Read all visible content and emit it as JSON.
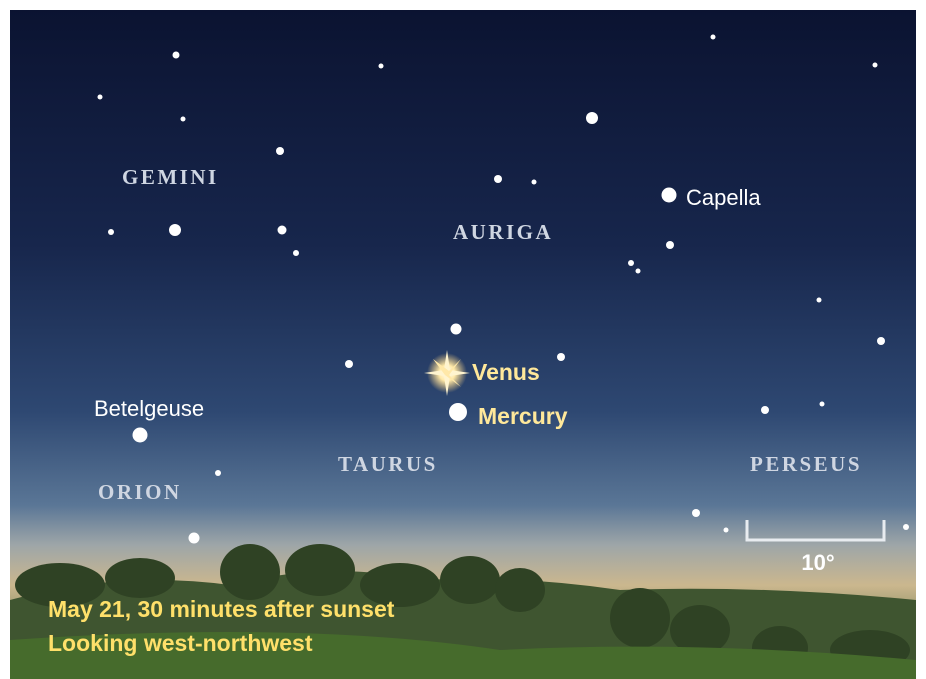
{
  "constellations": [
    "GEMINI",
    "AURIGA",
    "TAURUS",
    "ORION",
    "PERSEUS"
  ],
  "stars": [
    "Capella",
    "Betelgeuse"
  ],
  "planets": [
    "Venus",
    "Mercury"
  ],
  "scale": {
    "label": "10°"
  },
  "caption": [
    "May 21, 30 minutes after sunset",
    "Looking west-northwest"
  ]
}
